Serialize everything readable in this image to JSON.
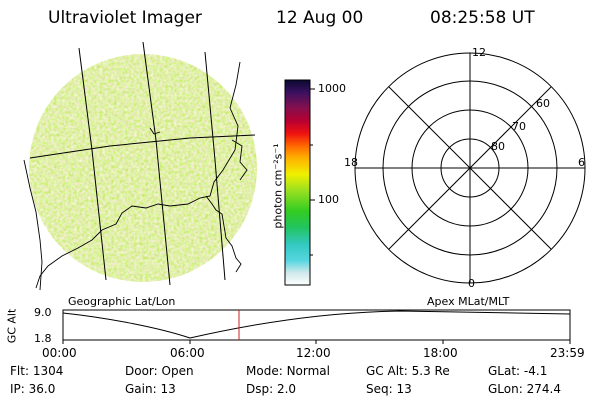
{
  "header": {
    "title": "Ultraviolet Imager",
    "date": "12 Aug 00",
    "time": "08:25:58 UT"
  },
  "colorbar": {
    "ticks": [
      "1000",
      "100"
    ],
    "unit_label": "photon cm⁻²s⁻¹"
  },
  "polar_plot": {
    "mlt_labels": {
      "top": "12",
      "right": "6",
      "bottom": "0",
      "left": "18"
    },
    "lat_labels": [
      "60",
      "70",
      "80"
    ]
  },
  "panel_labels": {
    "left": "Geographic Lat/Lon",
    "right": "Apex MLat/MLT"
  },
  "altitude_plot": {
    "ylabel": "GC Alt",
    "yticks": [
      "9.0",
      "1.8"
    ],
    "xticks": [
      "00:00",
      "06:00",
      "12:00",
      "18:00",
      "23:59"
    ]
  },
  "info": {
    "row1": [
      {
        "label": "Flt:",
        "value": "1304"
      },
      {
        "label": "Door:",
        "value": "Open"
      },
      {
        "label": "Mode:",
        "value": "Normal"
      },
      {
        "label": "GC Alt:",
        "value": "5.3 Re"
      },
      {
        "label": "GLat:",
        "value": "-4.1"
      }
    ],
    "row2": [
      {
        "label": "IP:",
        "value": "36.0"
      },
      {
        "label": "Gain:",
        "value": "13"
      },
      {
        "label": "Dsp:",
        "value": "2.0"
      },
      {
        "label": "Seq:",
        "value": "13"
      },
      {
        "label": "GLon:",
        "value": "274.4"
      }
    ]
  }
}
